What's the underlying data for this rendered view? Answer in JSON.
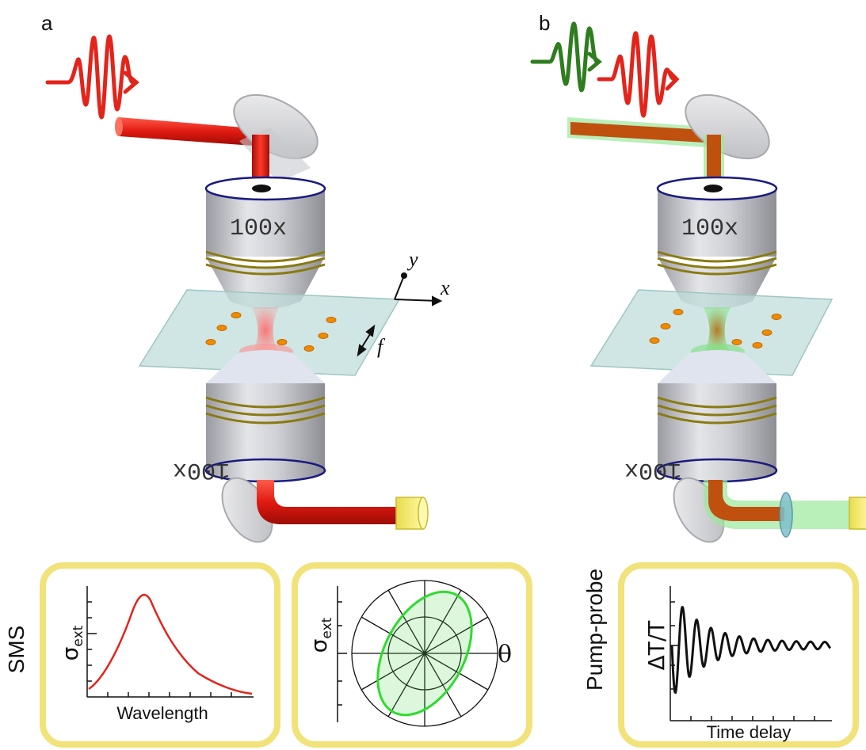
{
  "panel_a": {
    "letter": "a",
    "objective_top_label": "100x",
    "objective_bottom_label": "100x"
  },
  "panel_b": {
    "letter": "b",
    "objective_top_label": "100x",
    "objective_bottom_label": "100x"
  },
  "axes_labels": {
    "y": "y",
    "x": "x",
    "f": "f"
  },
  "colors": {
    "probe_beam": "#e3241b",
    "pump_beam": "#2e7d1f",
    "pump_glow": "#9be89b",
    "objective_body": "#c8c9ce",
    "objective_rim": "#1a1a80",
    "objective_ring": "#8a7a10",
    "sample_plate": "#bcdcd8",
    "nanoparticle": "#f08a00",
    "detector": "#f2e86a",
    "inset_frame": "#f1e27a"
  },
  "insets": {
    "sms_label": "SMS",
    "pump_probe_label": "Pump-probe",
    "spectrum": {
      "ylabel_main": "σ",
      "ylabel_sub": "ext",
      "xlabel": "Wavelength"
    },
    "polar": {
      "ylabel_main": "σ",
      "ylabel_sub": "ext",
      "angle_label": "θ"
    },
    "transient": {
      "ylabel": "ΔT/T",
      "xlabel": "Time delay"
    }
  }
}
